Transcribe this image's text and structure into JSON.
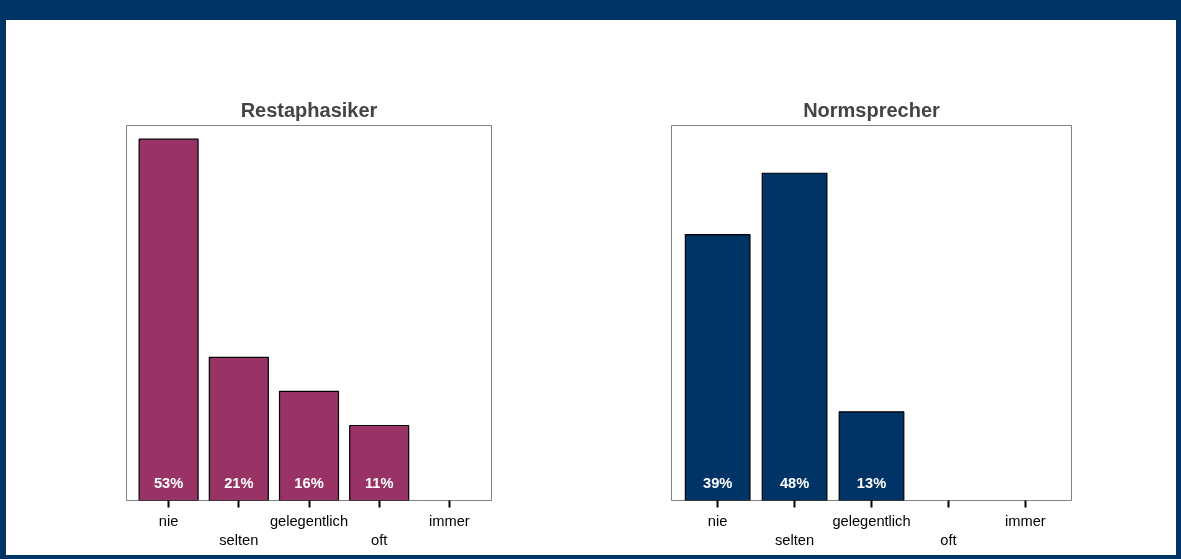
{
  "chart_data": [
    {
      "type": "bar",
      "title": "Restaphasiker",
      "categories": [
        "nie",
        "selten",
        "gelegentlich",
        "oft",
        "immer"
      ],
      "values": [
        53,
        21,
        16,
        11,
        null
      ],
      "value_labels": [
        "53%",
        "21%",
        "16%",
        "11%",
        null
      ],
      "color": "#993366",
      "ylim": [
        0,
        55
      ],
      "tick_labels": "x"
    },
    {
      "type": "bar",
      "title": "Normsprecher",
      "categories": [
        "nie",
        "selten",
        "gelegentlich",
        "oft",
        "immer"
      ],
      "values": [
        39,
        48,
        13,
        null,
        null
      ],
      "value_labels": [
        "39%",
        "48%",
        "13%",
        null,
        null
      ],
      "color": "#003366",
      "ylim": [
        0,
        55
      ],
      "tick_labels": "x"
    }
  ]
}
